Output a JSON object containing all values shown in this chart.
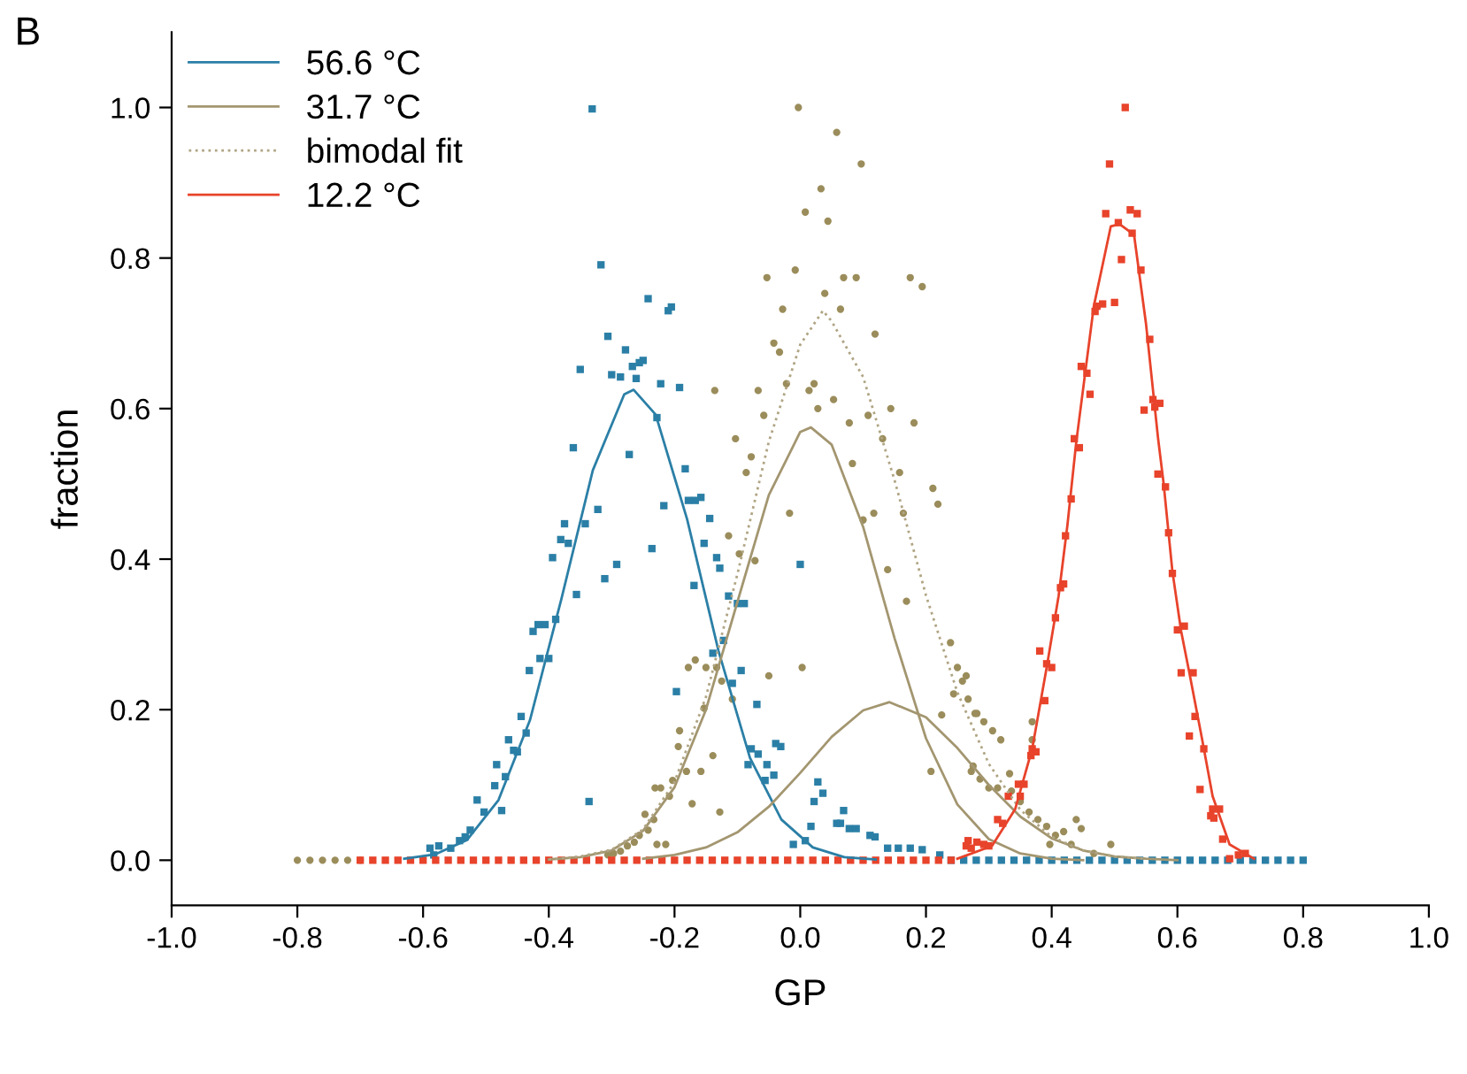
{
  "chart_data": {
    "type": "scatter",
    "xlabel": "GP",
    "ylabel": "fraction",
    "xlim": [
      -1.0,
      1.0
    ],
    "xticks": [
      {
        "value": -1.0,
        "label": "-1.0"
      },
      {
        "value": -0.8,
        "label": "-0.8"
      },
      {
        "value": -0.6,
        "label": "-0.6"
      },
      {
        "value": -0.4,
        "label": "-0.4"
      },
      {
        "value": -0.2,
        "label": "-0.2"
      },
      {
        "value": 0.0,
        "label": "0.0"
      },
      {
        "value": 0.2,
        "label": "0.2"
      },
      {
        "value": 0.4,
        "label": "0.4"
      },
      {
        "value": 0.6,
        "label": "0.6"
      },
      {
        "value": 0.8,
        "label": "0.8"
      },
      {
        "value": 1.0,
        "label": "1.0"
      }
    ],
    "ylim": [
      -0.06,
      1.1
    ],
    "yticks": [
      {
        "value": 0.0,
        "label": "0.0"
      },
      {
        "value": 0.2,
        "label": "0.2"
      },
      {
        "value": 0.4,
        "label": "0.4"
      },
      {
        "value": 0.6,
        "label": "0.6"
      },
      {
        "value": 0.8,
        "label": "0.8"
      },
      {
        "value": 1.0,
        "label": "1.0"
      }
    ],
    "grid": false,
    "legend": "top left",
    "annotations": [
      "B"
    ],
    "series": [
      {
        "color": "#2b7fa6",
        "marker": "square",
        "x": [
          -0.331,
          -0.317,
          -0.242,
          -0.21,
          -0.205,
          -0.306,
          -0.278,
          -0.25,
          -0.256,
          -0.267,
          -0.35,
          -0.3,
          -0.286,
          -0.261,
          -0.222,
          -0.192,
          -0.228,
          -0.361,
          -0.272,
          -0.183,
          -0.217,
          -0.178,
          -0.167,
          -0.158,
          -0.322,
          -0.144,
          -0.375,
          -0.342,
          -0.381,
          -0.369,
          -0.236,
          -0.153,
          -0.394,
          -0.133,
          -0.128,
          -0.292,
          -0.311,
          -0.169,
          -0.356,
          -0.114,
          -0.1,
          -0.089,
          -0.417,
          -0.406,
          -0.425,
          -0.389,
          -0.122,
          -0.139,
          -0.414,
          -0.4,
          -0.431,
          -0.094,
          -0.108,
          -0.197,
          -0.069,
          -0.444,
          -0.436,
          -0.464,
          -0.039,
          -0.031,
          -0.456,
          -0.45,
          -0.078,
          -0.067,
          -0.083,
          -0.053,
          -0.483,
          -0.469,
          -0.056,
          -0.042,
          -0.486,
          -0.336,
          -0.514,
          -0.503,
          -0.475,
          -0.525,
          -0.533,
          -0.542,
          -0.556,
          -0.575,
          -0.589,
          -0.583,
          0.0,
          0.028,
          0.036,
          0.022,
          0.017,
          0.069,
          0.058,
          0.064,
          0.078,
          0.089,
          0.008,
          -0.011,
          0.111,
          0.119,
          0.139,
          0.156,
          0.175,
          0.194,
          0.222,
          0.24,
          0.26,
          0.28,
          0.3,
          0.32,
          0.34,
          0.36,
          0.38,
          0.4,
          0.42,
          0.44,
          0.46,
          0.48,
          0.5,
          0.52,
          0.54,
          0.56,
          0.58,
          0.6,
          0.62,
          0.64,
          0.66,
          0.68,
          0.7,
          0.72,
          0.74,
          0.76,
          0.78,
          0.8
        ],
        "values": [
          0.998,
          0.791,
          0.746,
          0.73,
          0.735,
          0.696,
          0.678,
          0.664,
          0.661,
          0.656,
          0.652,
          0.645,
          0.642,
          0.64,
          0.633,
          0.628,
          0.588,
          0.548,
          0.539,
          0.52,
          0.471,
          0.478,
          0.478,
          0.482,
          0.466,
          0.454,
          0.447,
          0.447,
          0.426,
          0.421,
          0.414,
          0.421,
          0.402,
          0.402,
          0.388,
          0.393,
          0.374,
          0.365,
          0.353,
          0.351,
          0.341,
          0.341,
          0.313,
          0.313,
          0.304,
          0.32,
          0.292,
          0.275,
          0.268,
          0.268,
          0.252,
          0.252,
          0.235,
          0.224,
          0.207,
          0.191,
          0.169,
          0.16,
          0.155,
          0.151,
          0.146,
          0.144,
          0.148,
          0.141,
          0.127,
          0.127,
          0.127,
          0.111,
          0.106,
          0.113,
          0.099,
          0.078,
          0.08,
          0.064,
          0.066,
          0.04,
          0.031,
          0.026,
          0.016,
          0.019,
          0.016,
          0.007,
          0.393,
          0.104,
          0.089,
          0.078,
          0.045,
          0.066,
          0.049,
          0.049,
          0.042,
          0.042,
          0.026,
          0.021,
          0.033,
          0.031,
          0.016,
          0.016,
          0.016,
          0.014,
          0.007,
          0,
          0,
          0,
          0,
          0,
          0,
          0,
          0,
          0,
          0,
          0,
          0,
          0,
          0,
          0,
          0,
          0,
          0,
          0,
          0,
          0,
          0,
          0,
          0,
          0,
          0,
          0,
          0,
          0
        ]
      },
      {
        "color": "#9b8d5b",
        "marker": "circle",
        "x": [
          -0.003,
          0.058,
          0.097,
          0.033,
          0.008,
          0.044,
          -0.008,
          -0.053,
          0.069,
          0.089,
          0.175,
          0.194,
          0.039,
          -0.028,
          0.064,
          -0.042,
          -0.033,
          0.119,
          -0.136,
          -0.067,
          -0.022,
          0.022,
          0.014,
          0.053,
          0.028,
          0.144,
          -0.058,
          0.078,
          0.108,
          0.181,
          -0.103,
          0.131,
          -0.078,
          -0.086,
          -0.114,
          -0.097,
          -0.072,
          -0.167,
          -0.178,
          -0.15,
          -0.133,
          -0.125,
          -0.108,
          -0.05,
          -0.153,
          -0.192,
          -0.194,
          -0.139,
          -0.158,
          -0.181,
          -0.203,
          -0.231,
          -0.222,
          -0.208,
          -0.247,
          -0.172,
          -0.128,
          -0.233,
          -0.242,
          -0.256,
          -0.264,
          -0.275,
          -0.286,
          -0.297,
          -0.306,
          -0.228,
          -0.214,
          0.083,
          0.158,
          0.117,
          0.1,
          -0.017,
          0.211,
          0.219,
          0.164,
          0.139,
          0.169,
          0.239,
          0.25,
          0.258,
          0.244,
          0.267,
          0.278,
          0.292,
          0.306,
          0.225,
          0.275,
          0.286,
          0.208,
          0.336,
          0.35,
          0.003,
          0.264,
          0.281,
          0.319,
          0.272,
          0.3,
          0.314,
          0.333,
          0.369,
          0.369,
          0.364,
          0.378,
          0.392,
          0.406,
          0.419,
          0.397,
          0.431,
          0.439,
          0.447,
          0.467,
          0.494,
          -0.8,
          -0.78,
          -0.76,
          -0.74,
          -0.72,
          -0.7
        ],
        "values": [
          1.0,
          0.967,
          0.925,
          0.892,
          0.861,
          0.849,
          0.784,
          0.774,
          0.774,
          0.774,
          0.774,
          0.762,
          0.753,
          0.732,
          0.732,
          0.687,
          0.675,
          0.699,
          0.624,
          0.624,
          0.633,
          0.633,
          0.624,
          0.612,
          0.6,
          0.6,
          0.591,
          0.581,
          0.591,
          0.581,
          0.56,
          0.56,
          0.536,
          0.515,
          0.431,
          0.407,
          0.398,
          0.266,
          0.256,
          0.256,
          0.256,
          0.238,
          0.214,
          0.245,
          0.202,
          0.172,
          0.151,
          0.139,
          0.118,
          0.118,
          0.106,
          0.096,
          0.096,
          0.085,
          0.061,
          0.075,
          0.064,
          0.054,
          0.04,
          0.033,
          0.024,
          0.019,
          0.012,
          0.009,
          0.007,
          0.021,
          0.021,
          0.527,
          0.515,
          0.461,
          0.452,
          0.461,
          0.494,
          0.473,
          0.461,
          0.386,
          0.344,
          0.289,
          0.256,
          0.238,
          0.221,
          0.214,
          0.195,
          0.184,
          0.172,
          0.193,
          0.125,
          0.108,
          0.118,
          0.092,
          0.078,
          0.256,
          0.245,
          0.195,
          0.16,
          0.118,
          0.096,
          0.096,
          0.115,
          0.184,
          0.16,
          0.064,
          0.054,
          0.045,
          0.033,
          0.038,
          0.021,
          0.021,
          0.054,
          0.042,
          0.009,
          0.021,
          0,
          0,
          0,
          0,
          0,
          0
        ]
      },
      {
        "color": "#e8432b",
        "marker": "square",
        "x": [
          0.517,
          0.492,
          0.486,
          0.525,
          0.536,
          0.506,
          0.528,
          0.511,
          0.542,
          0.5,
          0.469,
          0.472,
          0.481,
          0.556,
          0.447,
          0.456,
          0.461,
          0.561,
          0.572,
          0.547,
          0.436,
          0.444,
          0.431,
          0.422,
          0.414,
          0.419,
          0.406,
          0.381,
          0.392,
          0.4,
          0.389,
          0.369,
          0.375,
          0.367,
          0.347,
          0.356,
          0.331,
          0.35,
          0.314,
          0.322,
          0.267,
          0.281,
          0.292,
          0.272,
          0.3,
          0.264,
          0.564,
          0.569,
          0.581,
          0.586,
          0.592,
          0.6,
          0.611,
          0.606,
          0.625,
          0.628,
          0.619,
          0.642,
          0.636,
          0.656,
          0.667,
          0.653,
          0.658,
          0.672,
          0.683,
          0.697,
          0.708,
          -0.7,
          -0.68,
          -0.66,
          -0.64,
          -0.62,
          -0.6,
          -0.58,
          -0.56,
          -0.54,
          -0.52,
          -0.5,
          -0.48,
          -0.46,
          -0.44,
          -0.42,
          -0.4,
          -0.38,
          -0.36,
          -0.34,
          -0.32,
          -0.3,
          -0.28,
          -0.26,
          -0.24,
          -0.22,
          -0.2,
          -0.18,
          -0.16,
          -0.14,
          -0.12,
          -0.1,
          -0.08,
          -0.06,
          -0.04,
          -0.02,
          0.0,
          0.02,
          0.04,
          0.06,
          0.08,
          0.1,
          0.12,
          0.14,
          0.16,
          0.18,
          0.2,
          0.22,
          0.24
        ],
        "values": [
          1.0,
          0.925,
          0.859,
          0.864,
          0.859,
          0.847,
          0.833,
          0.798,
          0.784,
          0.741,
          0.729,
          0.736,
          0.739,
          0.692,
          0.656,
          0.647,
          0.619,
          0.612,
          0.607,
          0.598,
          0.56,
          0.548,
          0.48,
          0.431,
          0.362,
          0.367,
          0.322,
          0.278,
          0.261,
          0.256,
          0.212,
          0.148,
          0.144,
          0.139,
          0.101,
          0.101,
          0.085,
          0.085,
          0.054,
          0.049,
          0.026,
          0.024,
          0.021,
          0.016,
          0.019,
          0.019,
          0.602,
          0.513,
          0.496,
          0.435,
          0.381,
          0.306,
          0.311,
          0.249,
          0.249,
          0.191,
          0.165,
          0.148,
          0.094,
          0.068,
          0.068,
          0.059,
          0.056,
          0.028,
          0.002,
          0.007,
          0.009,
          0,
          0,
          0,
          0,
          0,
          0,
          0,
          0,
          0,
          0,
          0,
          0,
          0,
          0,
          0,
          0,
          0,
          0,
          0,
          0,
          0,
          0,
          0,
          0,
          0,
          0,
          0,
          0,
          0,
          0,
          0,
          0,
          0,
          0,
          0,
          0,
          0,
          0,
          0,
          0,
          0,
          0,
          0,
          0,
          0,
          0,
          0,
          0
        ]
      },
      {
        "type": "line",
        "name": "56.6 °C",
        "color": "#2b7fa6",
        "line_style": "solid",
        "x": [
          -0.63,
          -0.58,
          -0.53,
          -0.48,
          -0.43,
          -0.38,
          -0.33,
          -0.28,
          -0.265,
          -0.23,
          -0.18,
          -0.13,
          -0.08,
          -0.03,
          0.02,
          0.07,
          0.12
        ],
        "values": [
          0.002,
          0.008,
          0.027,
          0.08,
          0.186,
          0.347,
          0.518,
          0.619,
          0.625,
          0.592,
          0.453,
          0.278,
          0.136,
          0.054,
          0.017,
          0.004,
          0.001
        ]
      },
      {
        "type": "line",
        "name": "31.7 °C",
        "color": "#a39670",
        "line_style": "solid",
        "x": [
          -0.4,
          -0.35,
          -0.3,
          -0.25,
          -0.2,
          -0.15,
          -0.1,
          -0.05,
          0.0,
          0.017,
          0.05,
          0.1,
          0.15,
          0.2,
          0.25,
          0.3,
          0.35,
          0.4,
          0.45
        ],
        "values": [
          0.001,
          0.004,
          0.013,
          0.039,
          0.097,
          0.2,
          0.343,
          0.485,
          0.569,
          0.575,
          0.552,
          0.443,
          0.295,
          0.162,
          0.074,
          0.028,
          0.009,
          0.002,
          0.0
        ]
      },
      {
        "type": "line",
        "color": "#a39670",
        "line_style": "solid",
        "x": [
          -0.25,
          -0.2,
          -0.15,
          -0.1,
          -0.05,
          0.0,
          0.05,
          0.1,
          0.142,
          0.2,
          0.25,
          0.3,
          0.35,
          0.4,
          0.45,
          0.5,
          0.55,
          0.6
        ],
        "values": [
          0.002,
          0.007,
          0.017,
          0.037,
          0.071,
          0.116,
          0.164,
          0.199,
          0.21,
          0.19,
          0.149,
          0.1,
          0.058,
          0.029,
          0.013,
          0.005,
          0.002,
          0.0
        ]
      },
      {
        "type": "line",
        "name": "bimodal fit",
        "color": "#b0a584",
        "line_style": "dotted",
        "x": [
          -0.4,
          -0.35,
          -0.3,
          -0.25,
          -0.2,
          -0.15,
          -0.1,
          -0.05,
          0.0,
          0.036,
          0.05,
          0.1,
          0.15,
          0.2,
          0.25,
          0.3,
          0.35,
          0.4,
          0.45,
          0.5,
          0.55
        ],
        "values": [
          0.001,
          0.005,
          0.014,
          0.041,
          0.104,
          0.217,
          0.38,
          0.556,
          0.685,
          0.73,
          0.716,
          0.642,
          0.505,
          0.352,
          0.223,
          0.128,
          0.067,
          0.031,
          0.013,
          0.005,
          0.002
        ]
      },
      {
        "type": "line",
        "name": "12.2 °C",
        "color": "#e8432b",
        "line_style": "solid",
        "x": [
          0.25,
          0.305,
          0.342,
          0.369,
          0.392,
          0.411,
          0.425,
          0.439,
          0.467,
          0.494,
          0.508,
          0.531,
          0.55,
          0.569,
          0.578,
          0.592,
          0.606,
          0.619,
          0.639,
          0.656,
          0.683,
          0.722
        ],
        "values": [
          0.002,
          0.019,
          0.068,
          0.148,
          0.256,
          0.351,
          0.445,
          0.555,
          0.736,
          0.842,
          0.845,
          0.831,
          0.713,
          0.562,
          0.501,
          0.384,
          0.304,
          0.249,
          0.162,
          0.085,
          0.021,
          0.002
        ]
      }
    ]
  }
}
